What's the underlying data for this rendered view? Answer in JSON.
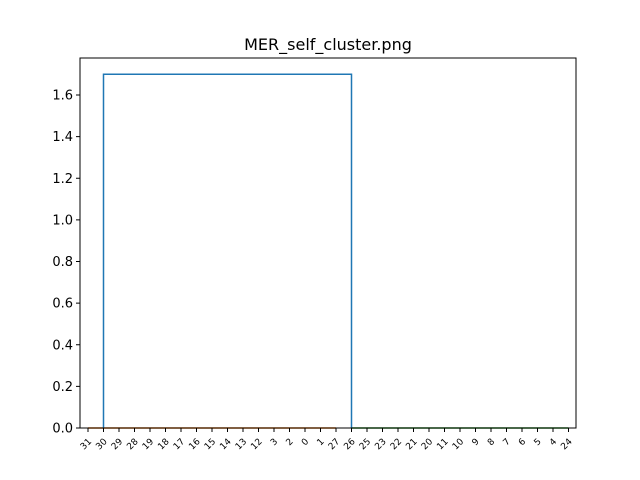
{
  "chart_data": {
    "type": "dendrogram",
    "title": "MER_self_cluster.png",
    "xlabel": "",
    "ylabel": "",
    "ylim": [
      0,
      1.7778
    ],
    "yticks": [
      0.0,
      0.2,
      0.4,
      0.6,
      0.8,
      1.0,
      1.2,
      1.4,
      1.6
    ],
    "leaf_labels": [
      "31",
      "30",
      "29",
      "28",
      "19",
      "18",
      "17",
      "16",
      "15",
      "14",
      "13",
      "12",
      "3",
      "2",
      "0",
      "1",
      "27",
      "26",
      "25",
      "23",
      "22",
      "21",
      "20",
      "11",
      "10",
      "9",
      "8",
      "7",
      "6",
      "5",
      "4",
      "24"
    ],
    "grid": false,
    "legend": "none",
    "colors": {
      "root_link": "#1f77b4",
      "cluster_1": "#ff7f0e",
      "cluster_2": "#2ca02c",
      "axis": "#000000"
    },
    "clusters": [
      {
        "leaves": [
          "31",
          "30",
          "29",
          "28",
          "19",
          "18",
          "17",
          "16",
          "15",
          "14",
          "13",
          "12",
          "3",
          "2",
          "0",
          "1",
          "27"
        ],
        "merge_height": 0.0,
        "color": "#ff7f0e"
      },
      {
        "leaves": [
          "26",
          "25",
          "23",
          "22",
          "21",
          "20",
          "11",
          "10",
          "9",
          "8",
          "7",
          "6",
          "5",
          "4",
          "24"
        ],
        "merge_height": 0.0,
        "color": "#2ca02c"
      }
    ],
    "root_merge": {
      "height": 1.7,
      "left_leg_at_leaf": "30",
      "right_leg_at_leaf": "26",
      "color": "#1f77b4"
    }
  }
}
